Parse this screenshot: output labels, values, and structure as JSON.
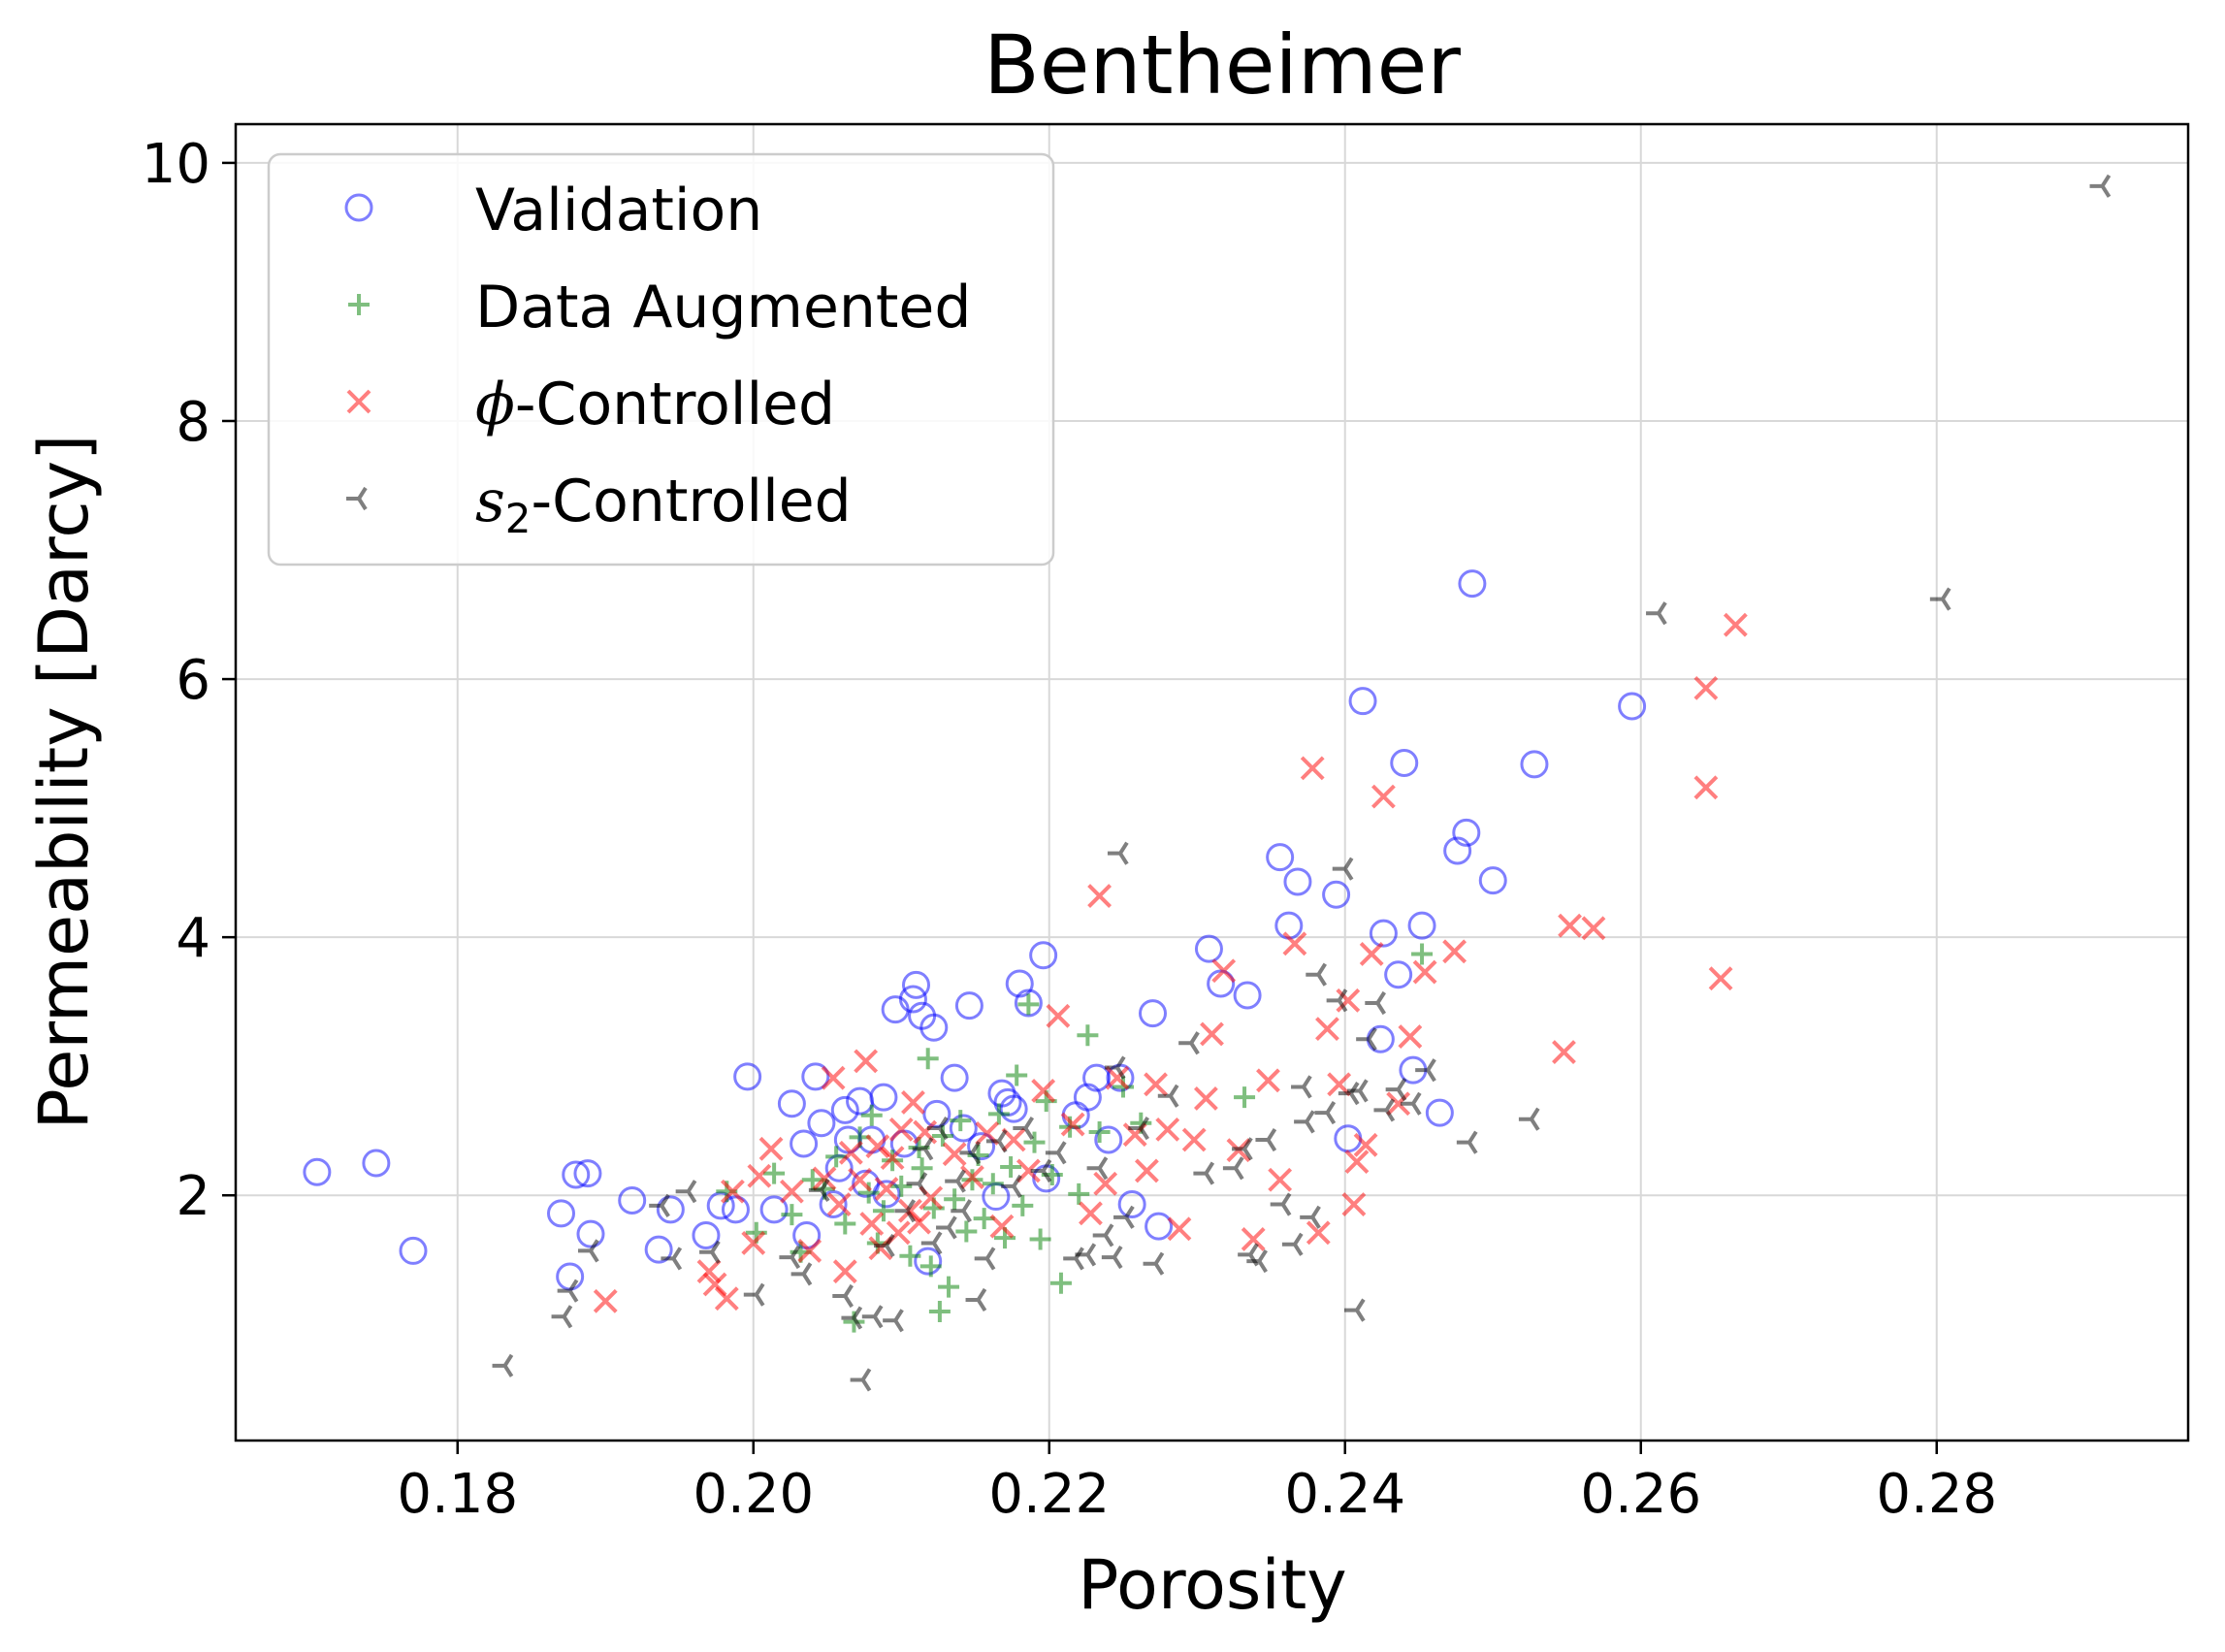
{
  "chart_data": {
    "type": "scatter",
    "title": "Bentheimer",
    "xlabel": "Porosity",
    "ylabel": "Permeability [Darcy]",
    "xlim": [
      0.165,
      0.297
    ],
    "ylim": [
      0.1,
      10.3
    ],
    "xticks": [
      0.18,
      0.2,
      0.22,
      0.24,
      0.26,
      0.28
    ],
    "xtick_labels": [
      "0.18",
      "0.20",
      "0.22",
      "0.24",
      "0.26",
      "0.28"
    ],
    "yticks": [
      2,
      4,
      6,
      8,
      10
    ],
    "ytick_labels": [
      "2",
      "4",
      "6",
      "8",
      "10"
    ],
    "grid": true,
    "legend_position": "upper-left",
    "series": [
      {
        "name": "Validation",
        "marker": "circle-open",
        "color": "#0000ff",
        "points": [
          [
            0.1705,
            2.18
          ],
          [
            0.1745,
            2.25
          ],
          [
            0.177,
            1.57
          ],
          [
            0.187,
            1.86
          ],
          [
            0.1876,
            1.37
          ],
          [
            0.188,
            2.16
          ],
          [
            0.1888,
            2.17
          ],
          [
            0.189,
            1.7
          ],
          [
            0.1918,
            1.96
          ],
          [
            0.1936,
            1.58
          ],
          [
            0.1944,
            1.89
          ],
          [
            0.1968,
            1.69
          ],
          [
            0.1978,
            1.92
          ],
          [
            0.1988,
            1.89
          ],
          [
            0.1996,
            2.92
          ],
          [
            0.2014,
            1.89
          ],
          [
            0.2026,
            2.71
          ],
          [
            0.2034,
            2.4
          ],
          [
            0.2036,
            1.69
          ],
          [
            0.2042,
            2.92
          ],
          [
            0.2046,
            2.56
          ],
          [
            0.2054,
            1.93
          ],
          [
            0.2058,
            2.21
          ],
          [
            0.2062,
            2.66
          ],
          [
            0.2064,
            2.43
          ],
          [
            0.2072,
            2.73
          ],
          [
            0.2076,
            2.09
          ],
          [
            0.208,
            2.43
          ],
          [
            0.2088,
            2.76
          ],
          [
            0.209,
            2.01
          ],
          [
            0.2096,
            3.44
          ],
          [
            0.2102,
            2.4
          ],
          [
            0.2108,
            3.52
          ],
          [
            0.211,
            3.63
          ],
          [
            0.2114,
            3.39
          ],
          [
            0.2118,
            1.49
          ],
          [
            0.2122,
            3.3
          ],
          [
            0.2124,
            2.63
          ],
          [
            0.2136,
            2.91
          ],
          [
            0.2142,
            2.52
          ],
          [
            0.2146,
            3.47
          ],
          [
            0.2154,
            2.38
          ],
          [
            0.2164,
            1.99
          ],
          [
            0.2168,
            2.79
          ],
          [
            0.2172,
            2.72
          ],
          [
            0.2176,
            2.67
          ],
          [
            0.218,
            3.64
          ],
          [
            0.2186,
            3.49
          ],
          [
            0.2196,
            3.86
          ],
          [
            0.2198,
            2.13
          ],
          [
            0.2218,
            2.62
          ],
          [
            0.2226,
            2.76
          ],
          [
            0.2232,
            2.91
          ],
          [
            0.224,
            2.43
          ],
          [
            0.2248,
            2.91
          ],
          [
            0.2256,
            1.93
          ],
          [
            0.227,
            3.41
          ],
          [
            0.2274,
            1.76
          ],
          [
            0.2308,
            3.91
          ],
          [
            0.2316,
            3.64
          ],
          [
            0.2334,
            3.55
          ],
          [
            0.2356,
            4.62
          ],
          [
            0.2362,
            4.09
          ],
          [
            0.2368,
            4.43
          ],
          [
            0.2394,
            4.33
          ],
          [
            0.2402,
            2.44
          ],
          [
            0.2412,
            5.83
          ],
          [
            0.2424,
            3.21
          ],
          [
            0.2426,
            4.03
          ],
          [
            0.2436,
            3.71
          ],
          [
            0.244,
            5.35
          ],
          [
            0.2446,
            2.97
          ],
          [
            0.2452,
            4.09
          ],
          [
            0.2464,
            2.64
          ],
          [
            0.2476,
            4.67
          ],
          [
            0.2482,
            4.81
          ],
          [
            0.2486,
            6.74
          ],
          [
            0.25,
            4.44
          ],
          [
            0.2528,
            5.34
          ],
          [
            0.2594,
            5.79
          ]
        ]
      },
      {
        "name": "Data Augmented",
        "marker": "plus",
        "color": "#008000",
        "points": [
          [
            0.1982,
            2.03
          ],
          [
            0.2002,
            1.71
          ],
          [
            0.2014,
            2.17
          ],
          [
            0.2026,
            1.85
          ],
          [
            0.2032,
            1.56
          ],
          [
            0.204,
            2.12
          ],
          [
            0.2048,
            2.05
          ],
          [
            0.2056,
            2.3
          ],
          [
            0.2062,
            1.78
          ],
          [
            0.2068,
            1.02
          ],
          [
            0.2072,
            2.45
          ],
          [
            0.2078,
            2.02
          ],
          [
            0.208,
            2.62
          ],
          [
            0.2084,
            1.63
          ],
          [
            0.2088,
            1.88
          ],
          [
            0.2094,
            2.27
          ],
          [
            0.21,
            2.07
          ],
          [
            0.2106,
            1.53
          ],
          [
            0.2112,
            2.37
          ],
          [
            0.2114,
            2.21
          ],
          [
            0.2118,
            3.06
          ],
          [
            0.212,
            1.45
          ],
          [
            0.2122,
            1.9
          ],
          [
            0.2126,
            1.1
          ],
          [
            0.2128,
            2.46
          ],
          [
            0.2132,
            1.29
          ],
          [
            0.2136,
            1.97
          ],
          [
            0.214,
            2.58
          ],
          [
            0.2144,
            1.72
          ],
          [
            0.2148,
            2.12
          ],
          [
            0.2152,
            2.31
          ],
          [
            0.2156,
            1.82
          ],
          [
            0.2162,
            2.09
          ],
          [
            0.2166,
            2.63
          ],
          [
            0.217,
            1.67
          ],
          [
            0.2174,
            2.22
          ],
          [
            0.2178,
            2.93
          ],
          [
            0.2182,
            1.92
          ],
          [
            0.2186,
            3.48
          ],
          [
            0.219,
            2.41
          ],
          [
            0.2194,
            1.66
          ],
          [
            0.2198,
            2.73
          ],
          [
            0.2202,
            2.16
          ],
          [
            0.2208,
            1.32
          ],
          [
            0.2214,
            2.53
          ],
          [
            0.222,
            2.01
          ],
          [
            0.2226,
            3.24
          ],
          [
            0.2234,
            2.49
          ],
          [
            0.225,
            2.84
          ],
          [
            0.2262,
            2.56
          ],
          [
            0.2332,
            2.76
          ],
          [
            0.2452,
            3.87
          ]
        ]
      },
      {
        "name": "ϕ-Controlled",
        "marker": "x",
        "color": "#ff0000",
        "points": [
          [
            0.19,
            1.18
          ],
          [
            0.197,
            1.41
          ],
          [
            0.1974,
            1.31
          ],
          [
            0.1982,
            1.2
          ],
          [
            0.1986,
            2.03
          ],
          [
            0.2,
            1.63
          ],
          [
            0.2004,
            2.15
          ],
          [
            0.2012,
            2.36
          ],
          [
            0.2026,
            2.03
          ],
          [
            0.2038,
            1.57
          ],
          [
            0.2048,
            2.13
          ],
          [
            0.2054,
            2.91
          ],
          [
            0.2058,
            1.93
          ],
          [
            0.2062,
            1.41
          ],
          [
            0.2066,
            2.33
          ],
          [
            0.2072,
            2.12
          ],
          [
            0.2076,
            3.04
          ],
          [
            0.208,
            1.78
          ],
          [
            0.2084,
            2.38
          ],
          [
            0.2086,
            1.59
          ],
          [
            0.209,
            2.05
          ],
          [
            0.2094,
            2.29
          ],
          [
            0.2098,
            1.71
          ],
          [
            0.21,
            2.51
          ],
          [
            0.2106,
            1.88
          ],
          [
            0.2108,
            2.72
          ],
          [
            0.2112,
            1.79
          ],
          [
            0.2116,
            2.49
          ],
          [
            0.212,
            1.98
          ],
          [
            0.2136,
            2.32
          ],
          [
            0.2148,
            2.14
          ],
          [
            0.2158,
            2.48
          ],
          [
            0.2168,
            1.76
          ],
          [
            0.2176,
            2.43
          ],
          [
            0.2186,
            2.19
          ],
          [
            0.2196,
            2.81
          ],
          [
            0.2206,
            3.39
          ],
          [
            0.2216,
            2.55
          ],
          [
            0.2228,
            1.86
          ],
          [
            0.2234,
            4.32
          ],
          [
            0.2238,
            2.09
          ],
          [
            0.2246,
            2.91
          ],
          [
            0.2258,
            2.47
          ],
          [
            0.2266,
            2.19
          ],
          [
            0.2272,
            2.86
          ],
          [
            0.228,
            2.51
          ],
          [
            0.2288,
            1.74
          ],
          [
            0.2298,
            2.43
          ],
          [
            0.2306,
            2.75
          ],
          [
            0.231,
            3.25
          ],
          [
            0.2318,
            3.74
          ],
          [
            0.2328,
            2.35
          ],
          [
            0.2338,
            1.66
          ],
          [
            0.2348,
            2.89
          ],
          [
            0.2356,
            2.12
          ],
          [
            0.2366,
            3.95
          ],
          [
            0.2378,
            5.31
          ],
          [
            0.2382,
            1.71
          ],
          [
            0.2388,
            3.29
          ],
          [
            0.2396,
            2.86
          ],
          [
            0.2402,
            3.51
          ],
          [
            0.2406,
            1.93
          ],
          [
            0.2408,
            2.26
          ],
          [
            0.2414,
            2.39
          ],
          [
            0.2418,
            3.87
          ],
          [
            0.2426,
            5.09
          ],
          [
            0.2436,
            2.71
          ],
          [
            0.2444,
            3.23
          ],
          [
            0.2454,
            3.73
          ],
          [
            0.2474,
            3.89
          ],
          [
            0.2548,
            3.11
          ],
          [
            0.2552,
            4.09
          ],
          [
            0.2568,
            4.07
          ],
          [
            0.2644,
            5.93
          ],
          [
            0.2644,
            5.16
          ],
          [
            0.2654,
            3.68
          ],
          [
            0.2664,
            6.42
          ]
        ]
      },
      {
        "name": "s₂-Controlled",
        "marker": "tri",
        "color": "#000000",
        "points": [
          [
            0.1832,
            0.68
          ],
          [
            0.1872,
            1.06
          ],
          [
            0.1876,
            1.26
          ],
          [
            0.189,
            1.57
          ],
          [
            0.1938,
            1.92
          ],
          [
            0.1946,
            1.51
          ],
          [
            0.1956,
            2.03
          ],
          [
            0.1972,
            1.56
          ],
          [
            0.2002,
            1.23
          ],
          [
            0.2026,
            1.52
          ],
          [
            0.2034,
            1.39
          ],
          [
            0.2046,
            2.04
          ],
          [
            0.2062,
            1.22
          ],
          [
            0.2068,
            1.05
          ],
          [
            0.2074,
            0.57
          ],
          [
            0.2082,
            1.06
          ],
          [
            0.209,
            1.61
          ],
          [
            0.2096,
            1.03
          ],
          [
            0.2104,
            1.88
          ],
          [
            0.2112,
            2.09
          ],
          [
            0.2116,
            2.36
          ],
          [
            0.2122,
            1.63
          ],
          [
            0.2126,
            2.52
          ],
          [
            0.2132,
            1.75
          ],
          [
            0.2138,
            2.11
          ],
          [
            0.2142,
            1.88
          ],
          [
            0.2148,
            2.33
          ],
          [
            0.2152,
            1.19
          ],
          [
            0.2158,
            1.51
          ],
          [
            0.2166,
            2.42
          ],
          [
            0.2176,
            2.07
          ],
          [
            0.2184,
            2.52
          ],
          [
            0.2196,
            2.19
          ],
          [
            0.2206,
            2.33
          ],
          [
            0.2218,
            1.51
          ],
          [
            0.2226,
            1.54
          ],
          [
            0.2234,
            2.21
          ],
          [
            0.2238,
            1.69
          ],
          [
            0.2244,
            1.52
          ],
          [
            0.2246,
            2.99
          ],
          [
            0.2248,
            4.65
          ],
          [
            0.2252,
            1.83
          ],
          [
            0.2262,
            2.52
          ],
          [
            0.2272,
            1.47
          ],
          [
            0.2282,
            2.77
          ],
          [
            0.2296,
            3.18
          ],
          [
            0.2306,
            2.17
          ],
          [
            0.2326,
            2.21
          ],
          [
            0.2332,
            2.36
          ],
          [
            0.2336,
            1.54
          ],
          [
            0.2342,
            1.49
          ],
          [
            0.2348,
            2.43
          ],
          [
            0.2358,
            1.93
          ],
          [
            0.2366,
            1.62
          ],
          [
            0.2372,
            2.84
          ],
          [
            0.2374,
            2.57
          ],
          [
            0.2378,
            1.83
          ],
          [
            0.2382,
            3.71
          ],
          [
            0.2388,
            2.64
          ],
          [
            0.2396,
            3.51
          ],
          [
            0.24,
            4.53
          ],
          [
            0.2404,
            2.79
          ],
          [
            0.2408,
            1.11
          ],
          [
            0.241,
            2.81
          ],
          [
            0.2416,
            3.21
          ],
          [
            0.2422,
            3.49
          ],
          [
            0.2428,
            2.66
          ],
          [
            0.2436,
            2.82
          ],
          [
            0.2446,
            2.71
          ],
          [
            0.2456,
            2.97
          ],
          [
            0.2484,
            2.41
          ],
          [
            0.2526,
            2.59
          ],
          [
            0.2612,
            6.51
          ],
          [
            0.2804,
            6.62
          ],
          [
            0.2912,
            9.82
          ]
        ]
      }
    ]
  },
  "colors": {
    "validation": "#0000ff",
    "augmented": "#008000",
    "phi": "#ff0000",
    "s2": "#000000"
  },
  "legend": {
    "validation": "Validation",
    "augmented": "Data Augmented",
    "phi_symbol": "ϕ",
    "phi_suffix": "-Controlled",
    "s2_symbol": "s",
    "s2_subscript": "2",
    "s2_suffix": "-Controlled"
  }
}
